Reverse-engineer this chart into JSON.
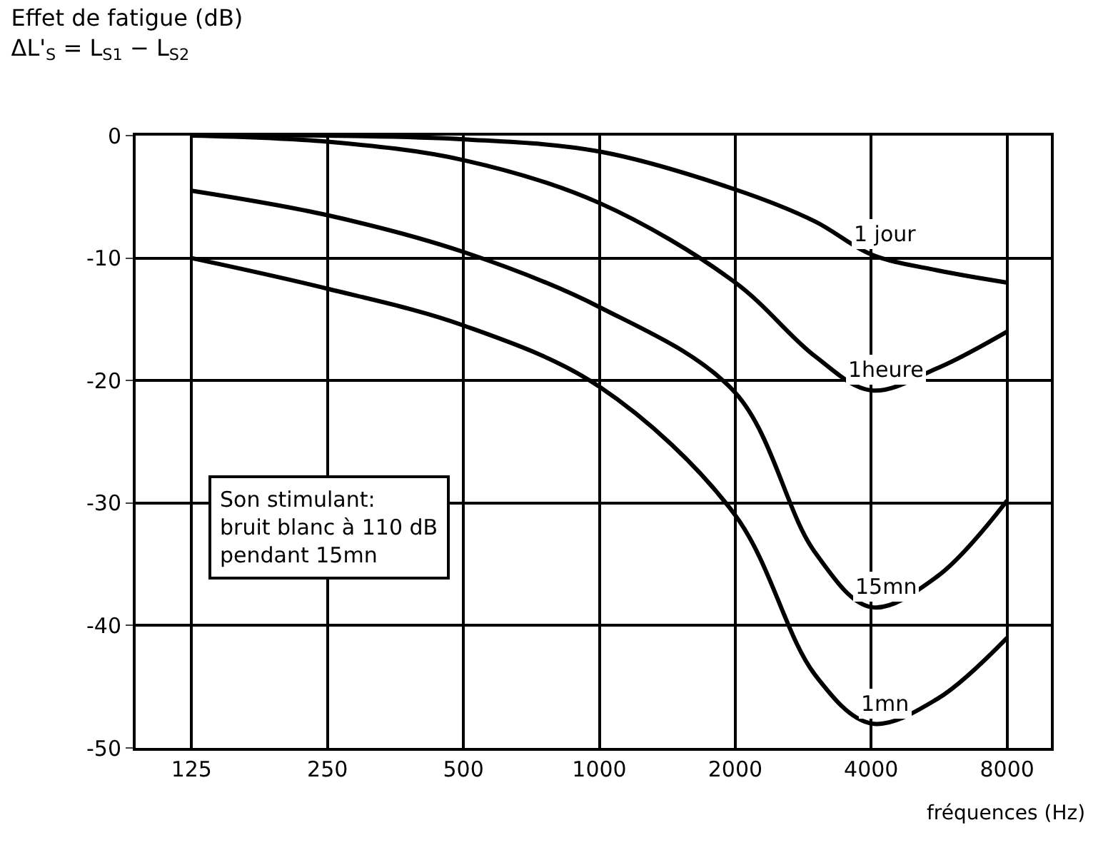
{
  "chart_data": {
    "type": "line",
    "title": "Effet de fatigue (dB)",
    "subtitle": "ΔL'$_{S}$ = L$_{S1}$ − L$_{S2}$",
    "xlabel": "fréquences (Hz)",
    "log": "x",
    "xlim": [
      94,
      10000
    ],
    "xticks": [
      125,
      250,
      500,
      1000,
      2000,
      4000,
      8000
    ],
    "ylim": [
      -50,
      0
    ],
    "yticks": [
      0,
      -10,
      -20,
      -30,
      -40,
      -50
    ],
    "grid": true,
    "legend": false,
    "marker": "none",
    "line_style": "solid",
    "x": [
      125,
      250,
      500,
      1000,
      2000,
      3000,
      4000,
      5600,
      8000
    ],
    "series": [
      {
        "name": "1 jour",
        "color": "#000000",
        "values": [
          0,
          0,
          -0.3,
          -1.3,
          -4.4,
          -7,
          -9.7,
          -11,
          -12
        ]
      },
      {
        "name": "1heure",
        "color": "#000000",
        "values": [
          0,
          -0.5,
          -2,
          -5.5,
          -12,
          -18,
          -20.8,
          -19,
          -16
        ]
      },
      {
        "name": "15mn",
        "color": "#000000",
        "values": [
          -4.5,
          -6.5,
          -9.5,
          -14,
          -21,
          -34,
          -38.5,
          -36,
          -29.8
        ]
      },
      {
        "name": "1mn",
        "color": "#000000",
        "values": [
          -10,
          -12.5,
          -15.5,
          -20.5,
          -31,
          -44,
          -48,
          -46,
          -41
        ]
      }
    ],
    "annotations": [
      "Son stimulant:\nbruit blanc à 110 dB\npendant 15mn"
    ]
  }
}
